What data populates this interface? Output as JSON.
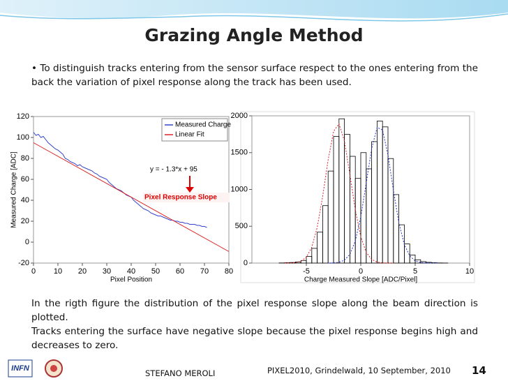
{
  "slide": {
    "title": "Grazing Angle Method",
    "bullet": "• To distinguish tracks entering from the sensor surface respect to the ones entering from the back the variation of pixel response along the track has been used.",
    "text": [
      "In the rigth figure the distribution of the pixel response slope along the beam direction is plotted.",
      "Tracks entering the surface have negative slope because the pixel response begins high and decreases to zero."
    ],
    "logo": "INFN",
    "footer": {
      "author": "STEFANO MEROLI",
      "event": "PIXEL2010, Grindelwald, 10 September, 2010",
      "page": 14
    }
  },
  "chart_data": [
    {
      "type": "line",
      "xlabel": "Pixel Position",
      "ylabel": "Measured Charge [ADC]",
      "xlim": [
        0,
        80
      ],
      "xticks": [
        0,
        10,
        20,
        30,
        40,
        50,
        60,
        70,
        80
      ],
      "ylim": [
        -20,
        120
      ],
      "yticks": [
        -20,
        0,
        20,
        40,
        60,
        80,
        100,
        120
      ],
      "legend": "upper right",
      "annotations": [
        "y = - 1.3*x + 95",
        "Pixel Response Slope"
      ],
      "series": [
        {
          "name": "Measured Charge",
          "color": "#3344cc",
          "x": [
            0,
            1,
            2,
            3,
            4,
            5,
            6,
            7,
            8,
            9,
            10,
            11,
            12,
            13,
            14,
            15,
            16,
            17,
            18,
            19,
            20,
            21,
            22,
            23,
            24,
            25,
            26,
            27,
            28,
            29,
            30,
            31,
            32,
            33,
            34,
            35,
            36,
            37,
            38,
            39,
            40,
            41,
            42,
            43,
            44,
            45,
            46,
            47,
            48,
            49,
            50,
            51,
            52,
            53,
            54,
            55,
            56,
            57,
            58,
            59,
            60,
            61,
            62,
            63,
            64,
            65,
            66,
            67,
            68,
            69,
            70,
            71
          ],
          "values": [
            105,
            102,
            103,
            100,
            101,
            98,
            95,
            93,
            91,
            89,
            88,
            86,
            84,
            80,
            79,
            77,
            76,
            75,
            73,
            74,
            72,
            71,
            70,
            69,
            68,
            66,
            65,
            63,
            62,
            61,
            60,
            57,
            55,
            53,
            51,
            50,
            49,
            47,
            45,
            44,
            43,
            40,
            38,
            36,
            34,
            32,
            31,
            30,
            28,
            27,
            26,
            25,
            25,
            24,
            23,
            22,
            21,
            21,
            20,
            20,
            19,
            19,
            18,
            18,
            17,
            17,
            17,
            16,
            16,
            15,
            15,
            14
          ]
        },
        {
          "name": "Linear Fit",
          "color": "#dd2222",
          "x": [
            0,
            80
          ],
          "values": [
            95,
            -9
          ]
        }
      ]
    },
    {
      "type": "histogram",
      "xlabel": "Charge Measured Slope [ADC/Pixel]",
      "xlim": [
        -10,
        10
      ],
      "xticks": [
        -5,
        0,
        5,
        10
      ],
      "ylim": [
        0,
        2000
      ],
      "yticks": [
        0,
        500,
        1000,
        1500,
        2000
      ],
      "color": "#000000",
      "bins": [
        -10,
        -9.5,
        -9,
        -8.5,
        -8,
        -7.5,
        -7,
        -6.5,
        -6,
        -5.5,
        -5,
        -4.5,
        -4,
        -3.5,
        -3,
        -2.5,
        -2,
        -1.5,
        -1,
        -0.5,
        0,
        0.5,
        1,
        1.5,
        2,
        2.5,
        3,
        3.5,
        4,
        4.5,
        5,
        5.5,
        6,
        6.5,
        7,
        7.5,
        8,
        8.5,
        9,
        9.5,
        10
      ],
      "values": [
        0,
        0,
        0,
        0,
        0,
        2,
        5,
        8,
        15,
        35,
        90,
        200,
        420,
        780,
        1250,
        1720,
        1960,
        1750,
        1450,
        1150,
        1500,
        1280,
        1650,
        1930,
        1850,
        1420,
        930,
        520,
        260,
        110,
        45,
        20,
        10,
        5,
        2,
        1,
        0,
        0,
        0,
        0
      ],
      "series": [
        {
          "color": "#dd2222",
          "linestyle": "dotted",
          "x": [
            -7,
            -6.5,
            -6,
            -5.5,
            -5,
            -4.5,
            -4,
            -3.5,
            -3,
            -2.5,
            -2,
            -1.5,
            -1,
            -0.5,
            0,
            0.5,
            1,
            1.5,
            2,
            2.5,
            3
          ],
          "values": [
            0,
            1,
            6,
            24,
            79,
            215,
            485,
            906,
            1399,
            1788,
            1893,
            1658,
            1203,
            722,
            359,
            147,
            50,
            14,
            3,
            0,
            0
          ]
        },
        {
          "color": "#2233cc",
          "linestyle": "dotted",
          "x": [
            -3,
            -2.5,
            -2,
            -1.5,
            -1,
            -0.5,
            0,
            0.5,
            1,
            1.5,
            2,
            2.5,
            3,
            3.5,
            4,
            4.5,
            5,
            5.5,
            6,
            6.5,
            7
          ],
          "values": [
            0,
            2,
            11,
            39,
            119,
            300,
            627,
            1085,
            1554,
            1842,
            1808,
            1468,
            987,
            549,
            253,
            97,
            30,
            8,
            2,
            0,
            0
          ]
        }
      ]
    }
  ]
}
